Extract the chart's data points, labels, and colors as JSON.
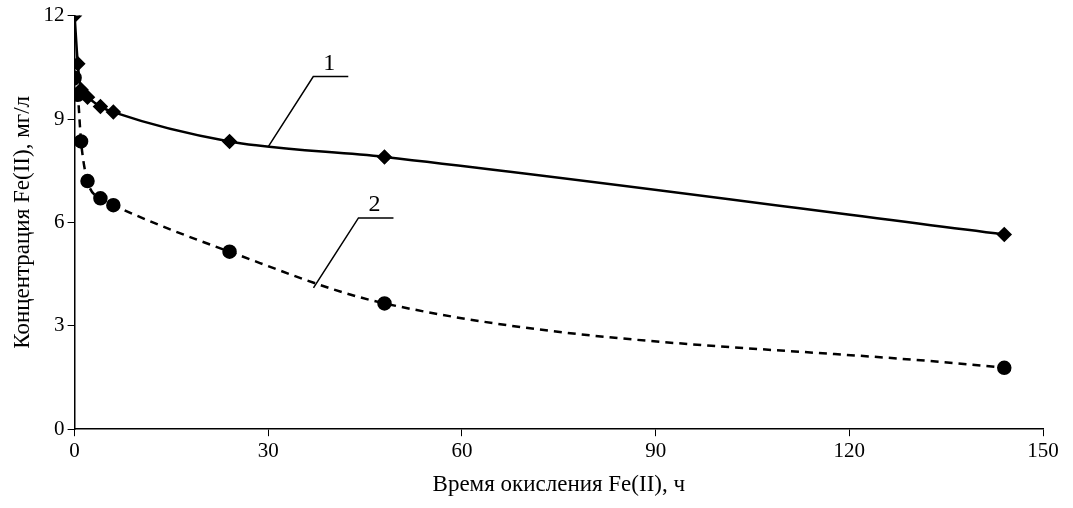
{
  "chart_data": {
    "type": "line",
    "xlabel": "Время окисления Fe(II), ч",
    "ylabel": "Концентрация Fe(II), мг/л",
    "xlim": [
      0,
      150
    ],
    "xticks": [
      0,
      30,
      60,
      90,
      120,
      150
    ],
    "ylim": [
      0,
      12
    ],
    "yticks": [
      0,
      3,
      6,
      9,
      12
    ],
    "grid": false,
    "legend": false,
    "series": [
      {
        "color": "#000000",
        "marker": "diamond",
        "line_style": "solid",
        "x": [
          0,
          0.5,
          1,
          2,
          4,
          6,
          24,
          48,
          144
        ],
        "values": [
          12,
          10.6,
          9.85,
          9.63,
          9.36,
          9.2,
          8.35,
          7.9,
          5.65
        ]
      },
      {
        "color": "#000000",
        "marker": "circle",
        "line_style": "dashed",
        "x": [
          0,
          0.5,
          1,
          2,
          4,
          6,
          24,
          48,
          144
        ],
        "values": [
          10.2,
          9.7,
          8.35,
          7.2,
          6.7,
          6.5,
          5.15,
          3.65,
          1.78
        ]
      }
    ],
    "annotations": [
      {
        "text": "1",
        "x": 30,
        "y": 8.2
      },
      {
        "text": "2",
        "x": 37,
        "y": 4.1
      }
    ]
  }
}
